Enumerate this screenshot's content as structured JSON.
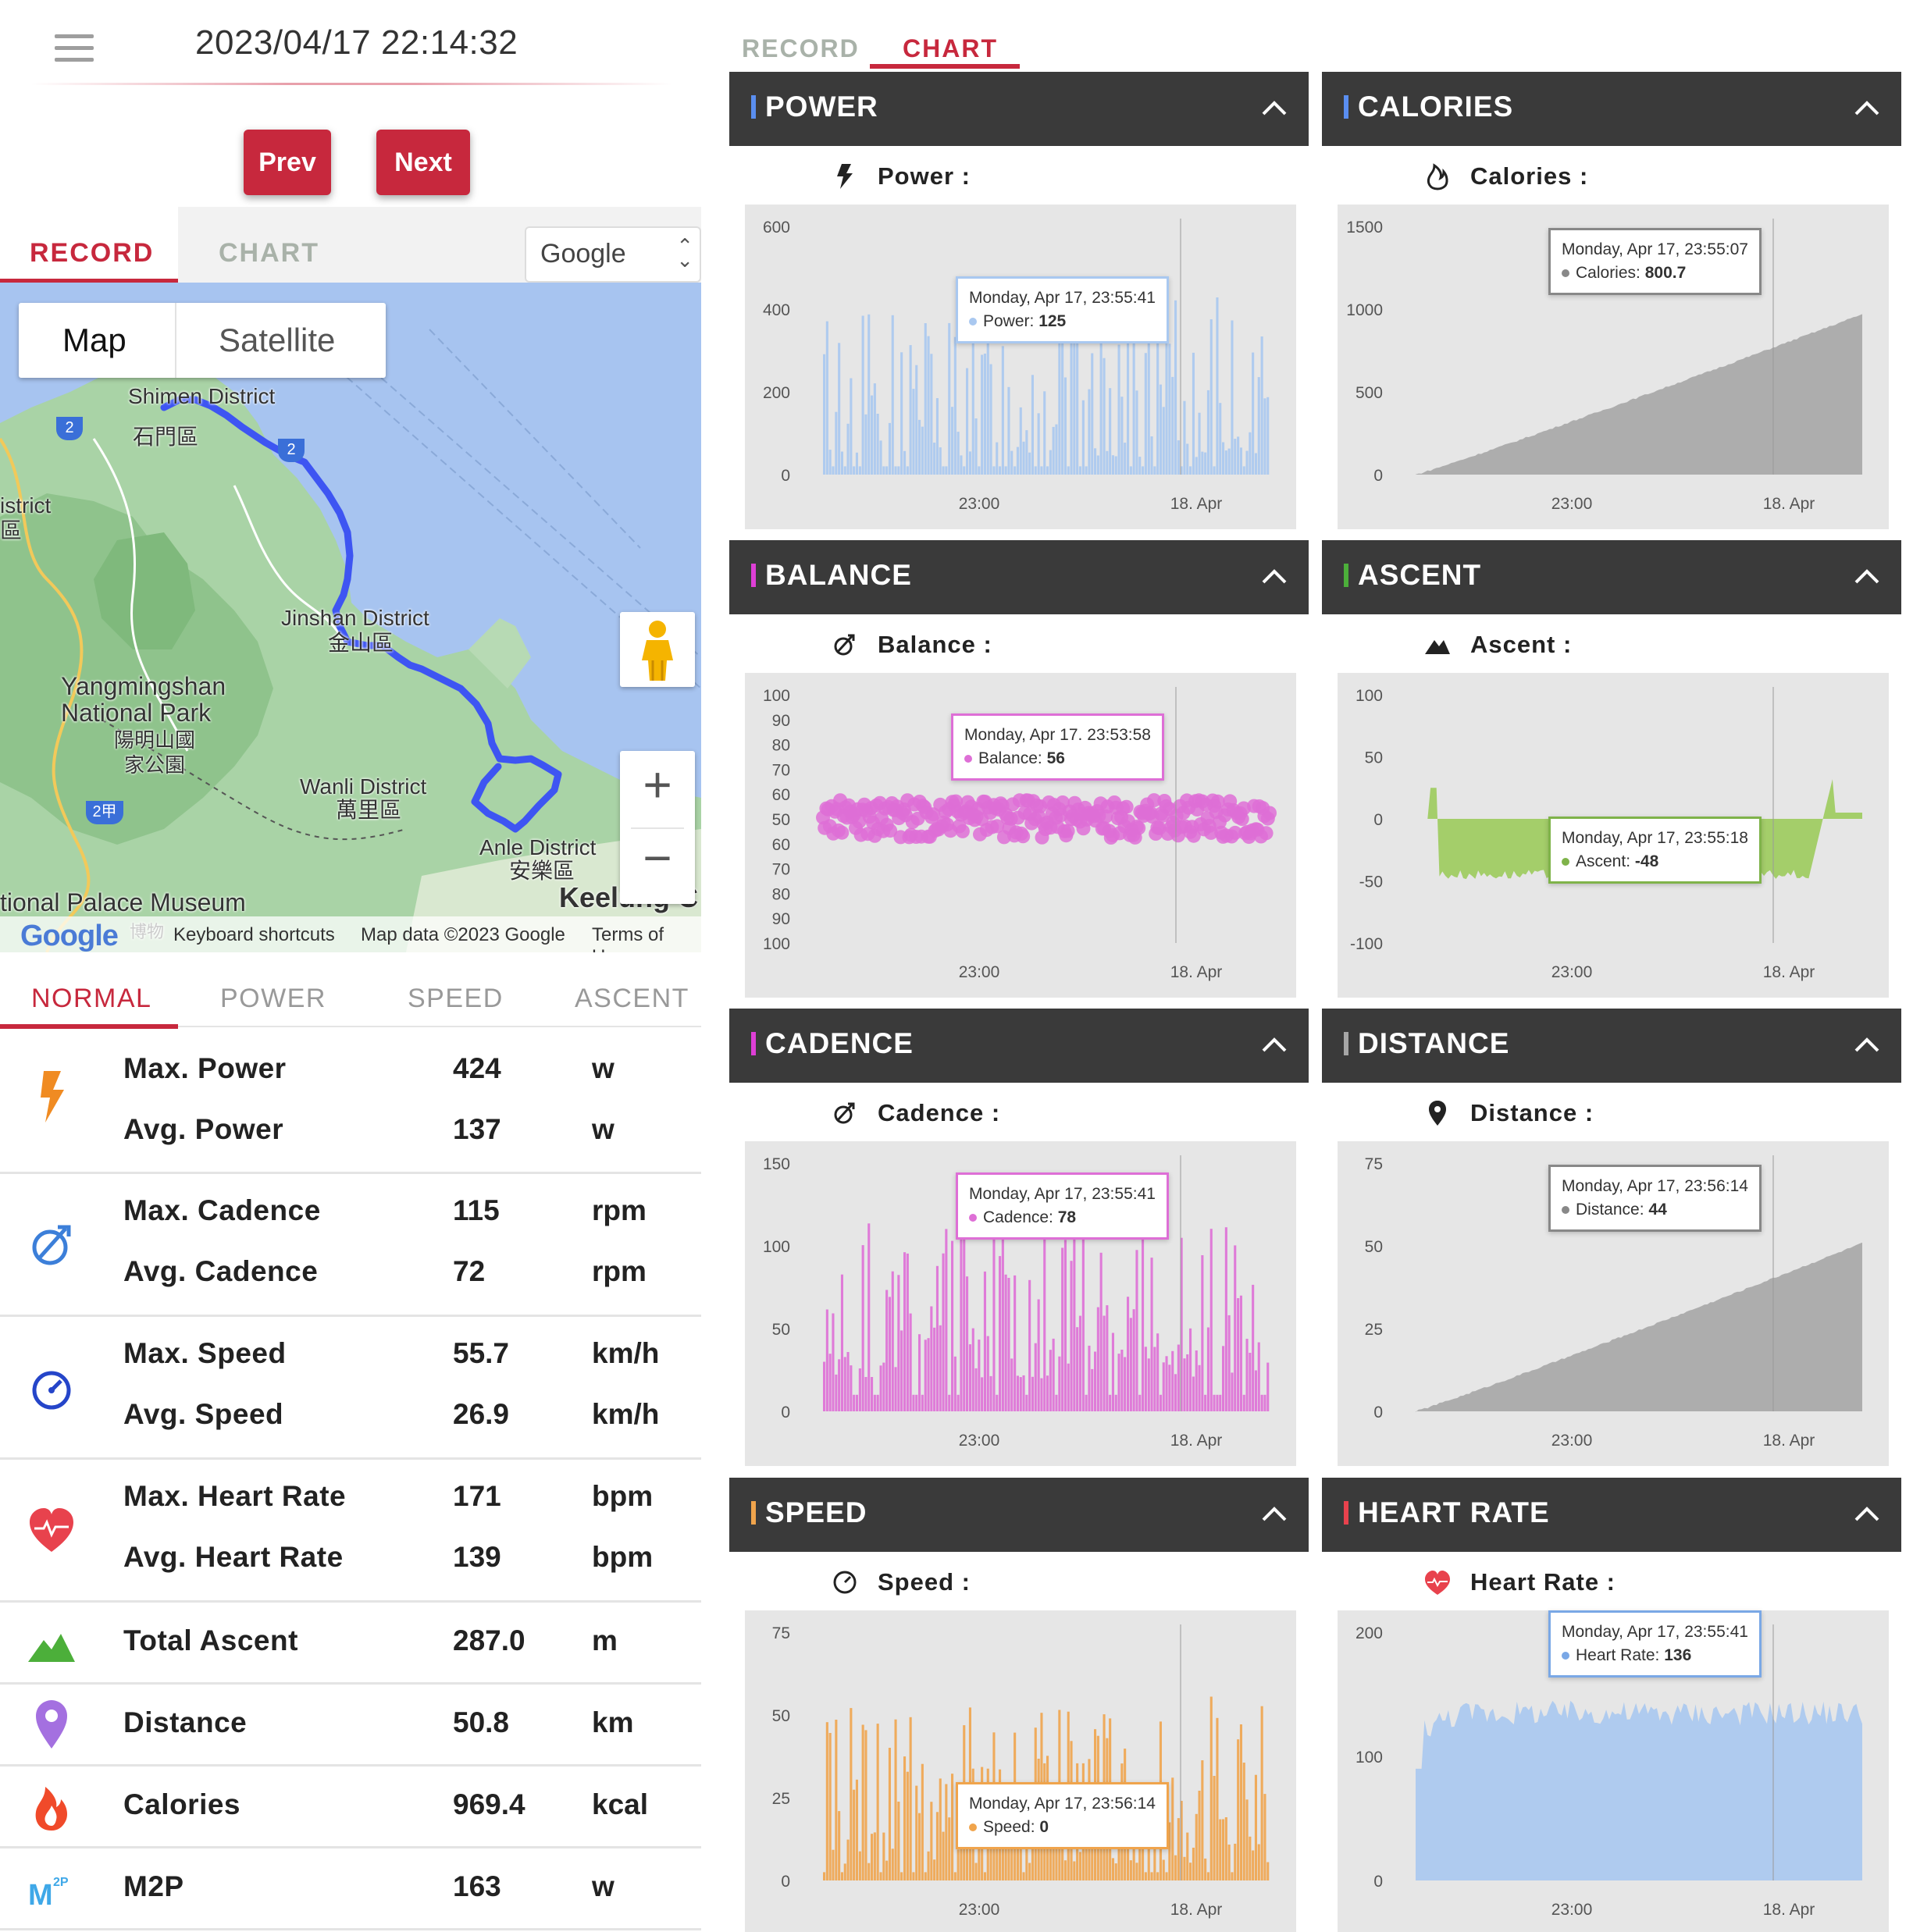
{
  "header": {
    "datetime": "2023/04/17 22:14:32",
    "prev_label": "Prev",
    "next_label": "Next"
  },
  "left_tabs": {
    "record": "RECORD",
    "chart": "CHART",
    "provider": "Google"
  },
  "map": {
    "type_map": "Map",
    "type_satellite": "Satellite",
    "labels": [
      "Shimen District",
      "石門區",
      "istrict",
      "區",
      "Jinshan District",
      "金山區",
      "Yangmingshan National Park",
      "陽明山國家公園",
      "Wanli District",
      "萬里區",
      "Anle District",
      "安樂區",
      "Keelung C",
      "tional Palace Museum",
      "博物"
    ],
    "shields": [
      "2",
      "2",
      "2甲"
    ],
    "footer": {
      "logo": "Google",
      "shortcuts": "Keyboard shortcuts",
      "data": "Map data ©2023 Google",
      "terms": "Terms of Use"
    }
  },
  "stat_tabs": [
    "NORMAL",
    "POWER",
    "SPEED",
    "ASCENT"
  ],
  "stats": [
    {
      "icon": "lightning-icon",
      "lines": [
        {
          "label": "Max. Power",
          "value": "424",
          "unit": "w"
        },
        {
          "label": "Avg. Power",
          "value": "137",
          "unit": "w"
        }
      ]
    },
    {
      "icon": "cadence-icon",
      "lines": [
        {
          "label": "Max. Cadence",
          "value": "115",
          "unit": "rpm"
        },
        {
          "label": "Avg. Cadence",
          "value": "72",
          "unit": "rpm"
        }
      ]
    },
    {
      "icon": "speedometer-icon",
      "lines": [
        {
          "label": "Max. Speed",
          "value": "55.7",
          "unit": "km/h"
        },
        {
          "label": "Avg. Speed",
          "value": "26.9",
          "unit": "km/h"
        }
      ]
    },
    {
      "icon": "heart-rate-icon",
      "lines": [
        {
          "label": "Max. Heart Rate",
          "value": "171",
          "unit": "bpm"
        },
        {
          "label": "Avg. Heart Rate",
          "value": "139",
          "unit": "bpm"
        }
      ]
    },
    {
      "icon": "mountain-icon",
      "lines": [
        {
          "label": "Total Ascent",
          "value": "287.0",
          "unit": "m"
        }
      ]
    },
    {
      "icon": "location-pin-icon",
      "lines": [
        {
          "label": "Distance",
          "value": "50.8",
          "unit": "km"
        }
      ]
    },
    {
      "icon": "flame-icon",
      "lines": [
        {
          "label": "Calories",
          "value": "969.4",
          "unit": "kcal"
        }
      ]
    },
    {
      "icon": "m2p-icon",
      "lines": [
        {
          "label": "M2P",
          "value": "163",
          "unit": "w"
        }
      ]
    }
  ],
  "right_tabs": {
    "record": "RECORD",
    "chart": "CHART"
  },
  "colors": {
    "brand": "#c7283d",
    "header": "#3a3a3a",
    "power": "#a9c8f0",
    "balance": "#de6fd6",
    "cadence": "#de6fd6",
    "speed": "#f0a44c",
    "heart": "#a9c8f0",
    "ascent": "#9ccb5c",
    "calories": "#a6a6a6",
    "distance": "#a6a6a6"
  },
  "chart_data": [
    {
      "type": "bar",
      "title": "POWER",
      "label": "Power :",
      "yticks": [
        "600",
        "400",
        "200",
        "0"
      ],
      "ylim": [
        0,
        600
      ],
      "xticks": [
        "23:00",
        "18. Apr"
      ],
      "approx_range": [
        40,
        430
      ],
      "tooltip": {
        "date": "Monday, Apr 17, 23:55:41",
        "name": "Power:",
        "value": "125"
      }
    },
    {
      "type": "area",
      "title": "CALORIES",
      "label": "Calories :",
      "yticks": [
        "1500",
        "1000",
        "500",
        "0"
      ],
      "ylim": [
        0,
        1500
      ],
      "xticks": [
        "23:00",
        "18. Apr"
      ],
      "approx_range": [
        0,
        969.4
      ],
      "tooltip": {
        "date": "Monday, Apr 17, 23:55:07",
        "name": "Calories:",
        "value": "800.7"
      }
    },
    {
      "type": "scatter",
      "title": "BALANCE",
      "label": "Balance :",
      "yticks": [
        "100",
        "90",
        "80",
        "70",
        "60",
        "50",
        "60",
        "70",
        "80",
        "90",
        "100"
      ],
      "xticks": [
        "23:00",
        "18. Apr"
      ],
      "approx_range": [
        45,
        58
      ],
      "tooltip": {
        "date": "Monday, Apr 17. 23:53:58",
        "name": "Balance:",
        "value": "56"
      }
    },
    {
      "type": "area",
      "title": "ASCENT",
      "label": "Ascent :",
      "yticks": [
        "100",
        "50",
        "0",
        "-50",
        "-100"
      ],
      "ylim": [
        -100,
        100
      ],
      "xticks": [
        "23:00",
        "18. Apr"
      ],
      "approx_range": [
        -55,
        45
      ],
      "tooltip": {
        "date": "Monday, Apr 17, 23:55:18",
        "name": "Ascent:",
        "value": "-48"
      }
    },
    {
      "type": "bar",
      "title": "CADENCE",
      "label": "Cadence :",
      "yticks": [
        "150",
        "100",
        "50",
        "0"
      ],
      "ylim": [
        0,
        150
      ],
      "xticks": [
        "23:00",
        "18. Apr"
      ],
      "approx_range": [
        20,
        115
      ],
      "tooltip": {
        "date": "Monday, Apr 17, 23:55:41",
        "name": "Cadence:",
        "value": "78"
      }
    },
    {
      "type": "area",
      "title": "DISTANCE",
      "label": "Distance :",
      "yticks": [
        "75",
        "50",
        "25",
        "0"
      ],
      "ylim": [
        0,
        75
      ],
      "xticks": [
        "23:00",
        "18. Apr"
      ],
      "approx_range": [
        0,
        50.8
      ],
      "tooltip": {
        "date": "Monday, Apr 17, 23:56:14",
        "name": "Distance:",
        "value": "44"
      }
    },
    {
      "type": "bar",
      "title": "SPEED",
      "label": "Speed :",
      "yticks": [
        "75",
        "50",
        "25",
        "0"
      ],
      "ylim": [
        0,
        75
      ],
      "xticks": [
        "23:00",
        "18. Apr"
      ],
      "approx_range": [
        5,
        55.7
      ],
      "tooltip": {
        "date": "Monday, Apr 17, 23:56:14",
        "name": "Speed:",
        "value": "0"
      }
    },
    {
      "type": "area",
      "title": "HEART RATE",
      "label": "Heart Rate :",
      "yticks": [
        "200",
        "100",
        "0"
      ],
      "ylim": [
        0,
        200
      ],
      "xticks": [
        "23:00",
        "18. Apr"
      ],
      "approx_range": [
        110,
        171
      ],
      "tooltip": {
        "date": "Monday, Apr 17, 23:55:41",
        "name": "Heart Rate:",
        "value": "136"
      }
    }
  ]
}
